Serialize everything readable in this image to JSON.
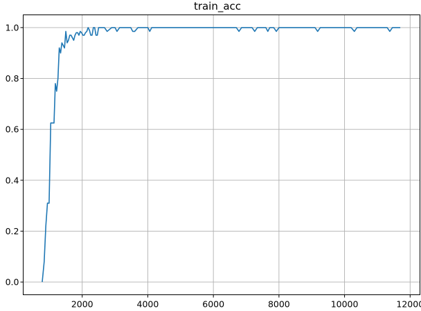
{
  "chart_data": {
    "type": "line",
    "title": "train_acc",
    "xlabel": "",
    "ylabel": "",
    "xlim": [
      200,
      12300
    ],
    "ylim": [
      -0.05,
      1.05
    ],
    "xticks": [
      2000,
      4000,
      6000,
      8000,
      10000,
      12000
    ],
    "yticks": [
      0.0,
      0.2,
      0.4,
      0.6,
      0.8,
      1.0
    ],
    "xtick_labels": [
      "2000",
      "4000",
      "6000",
      "8000",
      "10000",
      "12000"
    ],
    "ytick_labels": [
      "0.0",
      "0.2",
      "0.4",
      "0.6",
      "0.8",
      "1.0"
    ],
    "grid": true,
    "series": [
      {
        "color": "#1f77b4",
        "x": [
          780,
          840,
          890,
          940,
          990,
          1040,
          1100,
          1140,
          1180,
          1220,
          1260,
          1300,
          1340,
          1380,
          1420,
          1460,
          1500,
          1540,
          1580,
          1620,
          1660,
          1700,
          1740,
          1780,
          1820,
          1860,
          1900,
          1940,
          1980,
          2020,
          2060,
          2100,
          2140,
          2180,
          2220,
          2260,
          2300,
          2340,
          2380,
          2420,
          2460,
          2500,
          2560,
          2620,
          2680,
          2760,
          2900,
          3000,
          3060,
          3140,
          3300,
          3480,
          3540,
          3600,
          3700,
          3900,
          4000,
          4060,
          4120,
          4400,
          5000,
          5600,
          6200,
          6700,
          6780,
          6860,
          7000,
          7180,
          7260,
          7340,
          7600,
          7660,
          7720,
          7840,
          7920,
          8000,
          8060,
          8200,
          8600,
          9100,
          9180,
          9260,
          9600,
          10200,
          10300,
          10380,
          10800,
          11300,
          11380,
          11460,
          11700
        ],
        "y": [
          0.0,
          0.08,
          0.22,
          0.31,
          0.31,
          0.625,
          0.625,
          0.625,
          0.78,
          0.75,
          0.8,
          0.92,
          0.9,
          0.94,
          0.93,
          0.92,
          0.985,
          0.94,
          0.95,
          0.97,
          0.97,
          0.96,
          0.95,
          0.97,
          0.98,
          0.98,
          0.97,
          0.985,
          0.98,
          0.97,
          0.97,
          0.98,
          0.985,
          1.0,
          0.99,
          0.97,
          0.97,
          1.0,
          1.0,
          0.97,
          0.97,
          1.0,
          1.0,
          1.0,
          1.0,
          0.985,
          1.0,
          1.0,
          0.985,
          1.0,
          1.0,
          1.0,
          0.985,
          0.985,
          1.0,
          1.0,
          1.0,
          0.985,
          1.0,
          1.0,
          1.0,
          1.0,
          1.0,
          1.0,
          0.985,
          1.0,
          1.0,
          1.0,
          0.985,
          1.0,
          1.0,
          0.985,
          1.0,
          1.0,
          0.985,
          1.0,
          1.0,
          1.0,
          1.0,
          1.0,
          0.985,
          1.0,
          1.0,
          1.0,
          0.985,
          1.0,
          1.0,
          1.0,
          0.985,
          1.0,
          1.0
        ]
      }
    ]
  }
}
